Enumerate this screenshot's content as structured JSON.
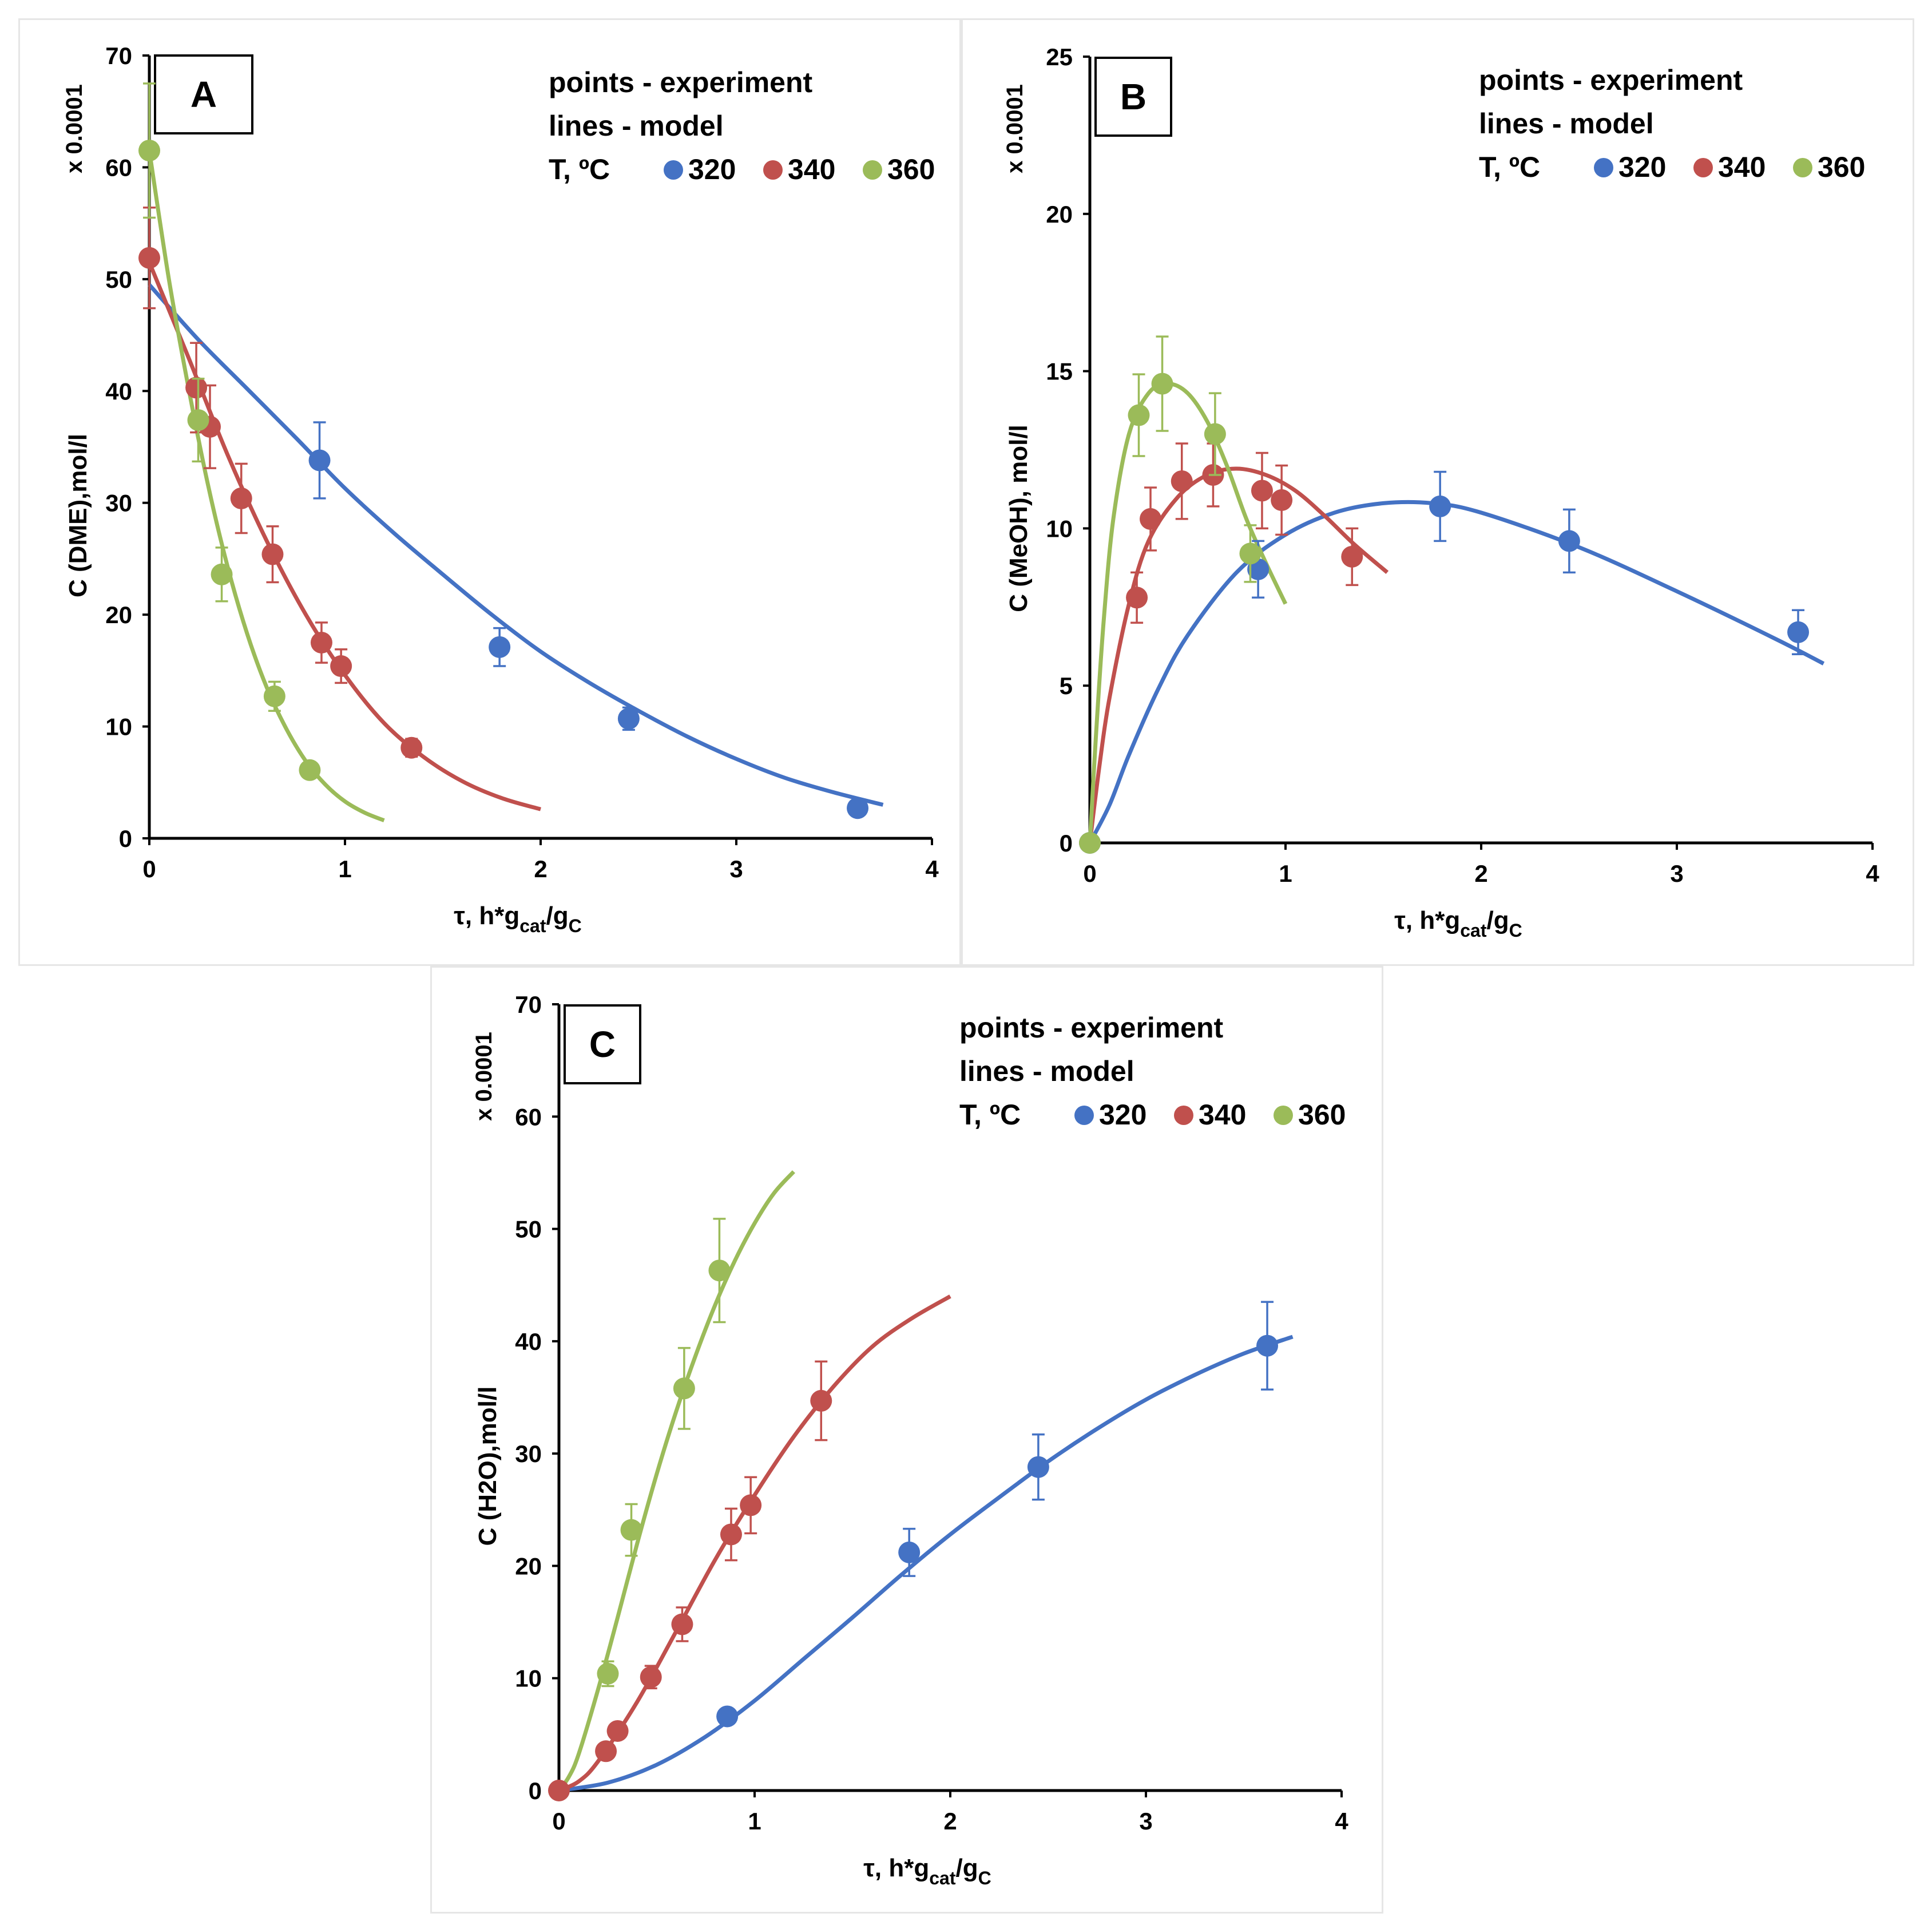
{
  "chart_data": [
    {
      "id": "A",
      "type": "scatter",
      "panel_label": "A",
      "xlabel": "τ, h*g",
      "xlabel_sub1": "cat",
      "xlabel_mid": "/g",
      "xlabel_sub2": "C",
      "ylabel": "C (DME),mol/l",
      "y_multiplier": "x 0.0001",
      "xlim": [
        0,
        4
      ],
      "ylim": [
        0,
        70
      ],
      "xticks": [
        0,
        1,
        2,
        3,
        4
      ],
      "yticks": [
        0,
        10,
        20,
        30,
        40,
        50,
        60,
        70
      ],
      "legend_line1": "points - experiment",
      "legend_line2": "lines - model",
      "legend_temp_label": "T, ºC",
      "series": [
        {
          "name": "320",
          "color": "#4472C4",
          "points": [
            {
              "x": 0.87,
              "y": 33.8,
              "err": 3.4
            },
            {
              "x": 1.79,
              "y": 17.1,
              "err": 1.7
            },
            {
              "x": 2.45,
              "y": 10.7,
              "err": 1.0
            },
            {
              "x": 3.62,
              "y": 2.7,
              "err": 0.4
            }
          ],
          "model": {
            "x": [
              0,
              0.25,
              0.5,
              0.75,
              1.0,
              1.25,
              1.5,
              1.75,
              2.0,
              2.25,
              2.5,
              2.75,
              3.0,
              3.25,
              3.5,
              3.75
            ],
            "y": [
              49.5,
              44.6,
              40.2,
              35.8,
              31.3,
              27.3,
              23.6,
              20.0,
              16.7,
              13.9,
              11.4,
              9.1,
              7.1,
              5.4,
              4.1,
              3.0
            ]
          }
        },
        {
          "name": "340",
          "color": "#C0504D",
          "points": [
            {
              "x": 0.0,
              "y": 51.9,
              "err": 4.5
            },
            {
              "x": 0.24,
              "y": 40.3,
              "err": 4.0
            },
            {
              "x": 0.31,
              "y": 36.8,
              "err": 3.7
            },
            {
              "x": 0.47,
              "y": 30.4,
              "err": 3.1
            },
            {
              "x": 0.63,
              "y": 25.4,
              "err": 2.5
            },
            {
              "x": 0.88,
              "y": 17.5,
              "err": 1.8
            },
            {
              "x": 0.98,
              "y": 15.4,
              "err": 1.5
            },
            {
              "x": 1.34,
              "y": 8.1,
              "err": 0.8
            }
          ],
          "model": {
            "x": [
              0,
              0.2,
              0.4,
              0.6,
              0.8,
              1.0,
              1.2,
              1.4,
              1.6,
              1.8,
              2.0
            ],
            "y": [
              51.5,
              43.0,
              34.3,
              26.6,
              20.0,
              14.6,
              10.3,
              7.3,
              5.1,
              3.6,
              2.6
            ]
          }
        },
        {
          "name": "360",
          "color": "#9BBB59",
          "points": [
            {
              "x": 0.0,
              "y": 61.5,
              "err": 6.0
            },
            {
              "x": 0.25,
              "y": 37.4,
              "err": 3.7
            },
            {
              "x": 0.37,
              "y": 23.6,
              "err": 2.4
            },
            {
              "x": 0.64,
              "y": 12.7,
              "err": 1.3
            },
            {
              "x": 0.82,
              "y": 6.1,
              "err": 0.6
            }
          ],
          "model": {
            "x": [
              0,
              0.1,
              0.2,
              0.3,
              0.4,
              0.5,
              0.6,
              0.7,
              0.8,
              0.9,
              1.0,
              1.1,
              1.2
            ],
            "y": [
              61.5,
              50.0,
              40.3,
              31.6,
              24.3,
              18.3,
              13.5,
              9.8,
              6.9,
              4.8,
              3.3,
              2.3,
              1.6
            ]
          }
        }
      ]
    },
    {
      "id": "B",
      "type": "scatter",
      "panel_label": "B",
      "xlabel": "τ, h*g",
      "xlabel_sub1": "cat",
      "xlabel_mid": "/g",
      "xlabel_sub2": "C",
      "ylabel": "C (MeOH), mol/l",
      "y_multiplier": "x 0.0001",
      "xlim": [
        0,
        4
      ],
      "ylim": [
        0,
        25
      ],
      "xticks": [
        0,
        1,
        2,
        3,
        4
      ],
      "yticks": [
        0,
        5,
        10,
        15,
        20,
        25
      ],
      "legend_line1": "points - experiment",
      "legend_line2": "lines - model",
      "legend_temp_label": "T, ºC",
      "series": [
        {
          "name": "320",
          "color": "#4472C4",
          "points": [
            {
              "x": 0.0,
              "y": 0.0,
              "err": 0
            },
            {
              "x": 0.86,
              "y": 8.7,
              "err": 0.9
            },
            {
              "x": 1.79,
              "y": 10.7,
              "err": 1.1
            },
            {
              "x": 2.45,
              "y": 9.6,
              "err": 1.0
            },
            {
              "x": 3.62,
              "y": 6.7,
              "err": 0.7
            }
          ],
          "model": {
            "x": [
              0,
              0.1,
              0.2,
              0.35,
              0.5,
              0.75,
              1.0,
              1.25,
              1.5,
              1.75,
              2.0,
              2.5,
              3.0,
              3.5,
              3.75
            ],
            "y": [
              0,
              1.2,
              2.8,
              4.9,
              6.6,
              8.6,
              9.8,
              10.5,
              10.8,
              10.8,
              10.5,
              9.4,
              8.0,
              6.5,
              5.7
            ]
          }
        },
        {
          "name": "340",
          "color": "#C0504D",
          "points": [
            {
              "x": 0.24,
              "y": 7.8,
              "err": 0.8
            },
            {
              "x": 0.31,
              "y": 10.3,
              "err": 1.0
            },
            {
              "x": 0.47,
              "y": 11.5,
              "err": 1.2
            },
            {
              "x": 0.63,
              "y": 11.7,
              "err": 1.0
            },
            {
              "x": 0.88,
              "y": 11.2,
              "err": 1.2
            },
            {
              "x": 0.98,
              "y": 10.9,
              "err": 1.1
            },
            {
              "x": 1.34,
              "y": 9.1,
              "err": 0.9
            }
          ],
          "model": {
            "x": [
              0,
              0.05,
              0.1,
              0.2,
              0.3,
              0.45,
              0.6,
              0.75,
              0.9,
              1.05,
              1.2,
              1.35,
              1.52
            ],
            "y": [
              0,
              2.5,
              4.6,
              7.6,
              9.6,
              11.0,
              11.7,
              11.9,
              11.7,
              11.2,
              10.4,
              9.5,
              8.6
            ]
          }
        },
        {
          "name": "360",
          "color": "#9BBB59",
          "points": [
            {
              "x": 0.0,
              "y": 0.0,
              "err": 0
            },
            {
              "x": 0.25,
              "y": 13.6,
              "err": 1.3
            },
            {
              "x": 0.37,
              "y": 14.6,
              "err": 1.5
            },
            {
              "x": 0.64,
              "y": 13.0,
              "err": 1.3
            },
            {
              "x": 0.82,
              "y": 9.2,
              "err": 0.9
            }
          ],
          "model": {
            "x": [
              0,
              0.03,
              0.07,
              0.12,
              0.2,
              0.3,
              0.4,
              0.5,
              0.6,
              0.7,
              0.8,
              0.9,
              1.0
            ],
            "y": [
              0,
              3.3,
              7.0,
              10.3,
              13.0,
              14.3,
              14.6,
              14.3,
              13.4,
              12.0,
              10.3,
              8.9,
              7.6
            ]
          }
        }
      ]
    },
    {
      "id": "C",
      "type": "scatter",
      "panel_label": "C",
      "xlabel": "τ, h*g",
      "xlabel_sub1": "cat",
      "xlabel_mid": "/g",
      "xlabel_sub2": "C",
      "ylabel": "C (H2O),mol/l",
      "y_multiplier": "x 0.0001",
      "xlim": [
        0,
        4
      ],
      "ylim": [
        0,
        70
      ],
      "xticks": [
        0,
        1,
        2,
        3,
        4
      ],
      "yticks": [
        0,
        10,
        20,
        30,
        40,
        50,
        60,
        70
      ],
      "legend_line1": "points - experiment",
      "legend_line2": "lines - model",
      "legend_temp_label": "T, ºC",
      "series": [
        {
          "name": "320",
          "color": "#4472C4",
          "points": [
            {
              "x": 0.86,
              "y": 6.6,
              "err": 0
            },
            {
              "x": 1.79,
              "y": 21.2,
              "err": 2.1
            },
            {
              "x": 2.45,
              "y": 28.8,
              "err": 2.9
            },
            {
              "x": 3.62,
              "y": 39.6,
              "err": 3.9
            }
          ],
          "model": {
            "x": [
              0,
              0.25,
              0.5,
              0.75,
              1.0,
              1.25,
              1.5,
              1.75,
              2.0,
              2.25,
              2.5,
              2.75,
              3.0,
              3.25,
              3.5,
              3.75
            ],
            "y": [
              0,
              0.7,
              2.3,
              4.8,
              8.0,
              11.7,
              15.4,
              19.2,
              22.8,
              26.1,
              29.3,
              32.2,
              34.8,
              37.0,
              38.9,
              40.4
            ]
          }
        },
        {
          "name": "340",
          "color": "#C0504D",
          "points": [
            {
              "x": 0.0,
              "y": 0.0,
              "err": 0
            },
            {
              "x": 0.24,
              "y": 3.5,
              "err": 0
            },
            {
              "x": 0.3,
              "y": 5.3,
              "err": 0
            },
            {
              "x": 0.47,
              "y": 10.1,
              "err": 1.0
            },
            {
              "x": 0.63,
              "y": 14.8,
              "err": 1.5
            },
            {
              "x": 0.88,
              "y": 22.8,
              "err": 2.3
            },
            {
              "x": 0.98,
              "y": 25.4,
              "err": 2.5
            },
            {
              "x": 1.34,
              "y": 34.7,
              "err": 3.5
            }
          ],
          "model": {
            "x": [
              0,
              0.1,
              0.2,
              0.4,
              0.6,
              0.8,
              1.0,
              1.2,
              1.4,
              1.6,
              1.8,
              2.0
            ],
            "y": [
              0,
              0.8,
              2.6,
              7.9,
              14.2,
              20.6,
              26.3,
              31.5,
              35.9,
              39.5,
              42.0,
              44.0
            ]
          }
        },
        {
          "name": "360",
          "color": "#9BBB59",
          "points": [
            {
              "x": 0.25,
              "y": 10.4,
              "err": 1.1
            },
            {
              "x": 0.37,
              "y": 23.2,
              "err": 2.3
            },
            {
              "x": 0.64,
              "y": 35.8,
              "err": 3.6
            },
            {
              "x": 0.82,
              "y": 46.3,
              "err": 4.6
            }
          ],
          "model": {
            "x": [
              0,
              0.05,
              0.1,
              0.2,
              0.3,
              0.4,
              0.5,
              0.6,
              0.7,
              0.8,
              0.9,
              1.0,
              1.1,
              1.2
            ],
            "y": [
              0,
              1.2,
              3.2,
              9.0,
              15.4,
              22.0,
              28.2,
              33.8,
              38.8,
              43.3,
              47.2,
              50.5,
              53.2,
              55.1
            ]
          }
        }
      ]
    }
  ]
}
